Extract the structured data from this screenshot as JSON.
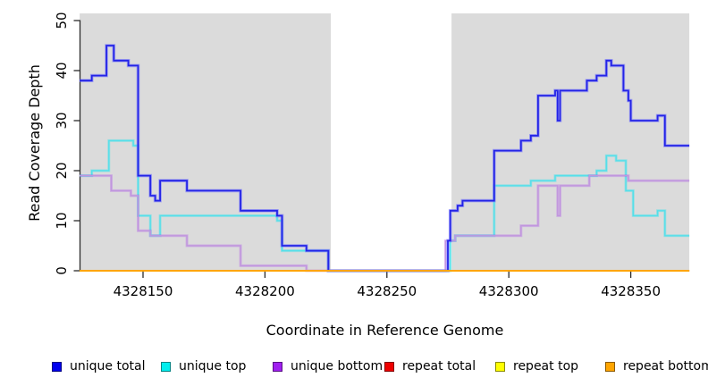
{
  "chart_data": {
    "type": "line",
    "subtype": "step",
    "title": "",
    "xlabel": "Coordinate in Reference Genome",
    "ylabel": "Read Coverage Depth",
    "xlim": [
      4328124,
      4328374
    ],
    "ylim": [
      0,
      50
    ],
    "x_ticks": [
      4328150,
      4328200,
      4328250,
      4328300,
      4328350
    ],
    "y_ticks": [
      0,
      10,
      20,
      30,
      40,
      50
    ],
    "grid": false,
    "legend_position": "bottom",
    "background_color": "#FFFFFF",
    "panel_shade_color": "#DBDBDB",
    "shaded_regions": [
      [
        4328124,
        4328227
      ],
      [
        4328276.5,
        4328374
      ]
    ],
    "series": [
      {
        "name": "unique total",
        "color": "#0000EE",
        "steps": [
          [
            4328124,
            38
          ],
          [
            4328129,
            39
          ],
          [
            4328135,
            45
          ],
          [
            4328138,
            42
          ],
          [
            4328144,
            41
          ],
          [
            4328148,
            19
          ],
          [
            4328153,
            15
          ],
          [
            4328155,
            14
          ],
          [
            4328157,
            18
          ],
          [
            4328168,
            16
          ],
          [
            4328190,
            12
          ],
          [
            4328205,
            11
          ],
          [
            4328207,
            5
          ],
          [
            4328217,
            4
          ],
          [
            4328226,
            0
          ],
          [
            4328275,
            6
          ],
          [
            4328276,
            12
          ],
          [
            4328279,
            13
          ],
          [
            4328281,
            14
          ],
          [
            4328294,
            24
          ],
          [
            4328305,
            26
          ],
          [
            4328309,
            27
          ],
          [
            4328312,
            35
          ],
          [
            4328319,
            36
          ],
          [
            4328320,
            30
          ],
          [
            4328321,
            36
          ],
          [
            4328332,
            38
          ],
          [
            4328336,
            39
          ],
          [
            4328340,
            42
          ],
          [
            4328342,
            41
          ],
          [
            4328347,
            36
          ],
          [
            4328349,
            34
          ],
          [
            4328350,
            30
          ],
          [
            4328361,
            31
          ],
          [
            4328364,
            25
          ]
        ]
      },
      {
        "name": "unique top",
        "color": "#00EEEE",
        "steps": [
          [
            4328124,
            19
          ],
          [
            4328129,
            20
          ],
          [
            4328136,
            26
          ],
          [
            4328146,
            25
          ],
          [
            4328148,
            11
          ],
          [
            4328153,
            7
          ],
          [
            4328157,
            11
          ],
          [
            4328205,
            10
          ],
          [
            4328207,
            4
          ],
          [
            4328226,
            0
          ],
          [
            4328276,
            6
          ],
          [
            4328278,
            7
          ],
          [
            4328294,
            17
          ],
          [
            4328309,
            18
          ],
          [
            4328319,
            19
          ],
          [
            4328336,
            20
          ],
          [
            4328340,
            23
          ],
          [
            4328344,
            22
          ],
          [
            4328348,
            16
          ],
          [
            4328351,
            11
          ],
          [
            4328361,
            12
          ],
          [
            4328364,
            7
          ]
        ]
      },
      {
        "name": "unique bottom",
        "color": "#A020F0",
        "steps": [
          [
            4328124,
            19
          ],
          [
            4328137,
            16
          ],
          [
            4328145,
            15
          ],
          [
            4328148,
            8
          ],
          [
            4328153,
            7
          ],
          [
            4328168,
            5
          ],
          [
            4328190,
            1
          ],
          [
            4328217,
            0
          ],
          [
            4328274,
            6
          ],
          [
            4328278,
            7
          ],
          [
            4328305,
            9
          ],
          [
            4328312,
            17
          ],
          [
            4328320,
            11
          ],
          [
            4328321,
            17
          ],
          [
            4328333,
            19
          ],
          [
            4328349,
            18
          ]
        ]
      },
      {
        "name": "repeat total",
        "color": "#EE0000",
        "steps": [
          [
            4328124,
            0
          ]
        ]
      },
      {
        "name": "repeat top",
        "color": "#FFFF00",
        "steps": [
          [
            4328124,
            0
          ]
        ]
      },
      {
        "name": "repeat bottom",
        "color": "#FFA500",
        "steps": [
          [
            4328124,
            0
          ]
        ]
      }
    ]
  }
}
